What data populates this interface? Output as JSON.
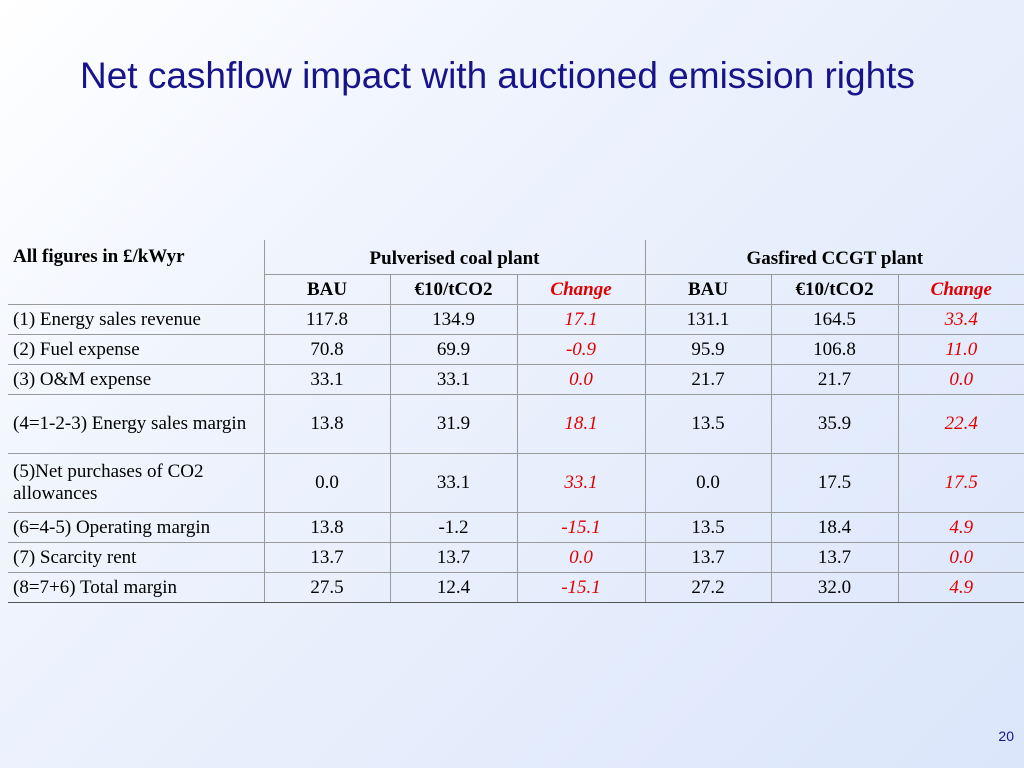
{
  "slide": {
    "title": "Net cashflow impact with auctioned emission rights",
    "page_number": "20",
    "colors": {
      "title": "#17148a",
      "change": "#e00000"
    }
  },
  "table": {
    "corner_label": "All figures in £/kWyr",
    "groups": [
      "Pulverised coal plant",
      "Gasfired CCGT plant"
    ],
    "columns": [
      "BAU",
      "€10/tCO2",
      "Change",
      "BAU",
      "€10/tCO2",
      "Change"
    ],
    "rows": [
      {
        "label": "(1) Energy sales revenue",
        "cells": [
          "117.8",
          "134.9",
          "17.1",
          "131.1",
          "164.5",
          "33.4"
        ]
      },
      {
        "label": "(2) Fuel expense",
        "cells": [
          "70.8",
          "69.9",
          "-0.9",
          "95.9",
          "106.8",
          "11.0"
        ]
      },
      {
        "label": "(3) O&M expense",
        "cells": [
          "33.1",
          "33.1",
          "0.0",
          "21.7",
          "21.7",
          "0.0"
        ]
      },
      {
        "label": "(4=1-2-3) Energy sales margin",
        "cells": [
          "13.8",
          "31.9",
          "18.1",
          "13.5",
          "35.9",
          "22.4"
        ]
      },
      {
        "label": "(5)Net purchases of CO2 allowances",
        "cells": [
          "0.0",
          "33.1",
          "33.1",
          "0.0",
          "17.5",
          "17.5"
        ]
      },
      {
        "label": "(6=4-5) Operating margin",
        "cells": [
          "13.8",
          "-1.2",
          "-15.1",
          "13.5",
          "18.4",
          "4.9"
        ]
      },
      {
        "label": "(7) Scarcity rent",
        "cells": [
          "13.7",
          "13.7",
          "0.0",
          "13.7",
          "13.7",
          "0.0"
        ]
      },
      {
        "label": "(8=7+6) Total margin",
        "cells": [
          "27.5",
          "12.4",
          "-15.1",
          "27.2",
          "32.0",
          "4.9"
        ]
      }
    ]
  }
}
